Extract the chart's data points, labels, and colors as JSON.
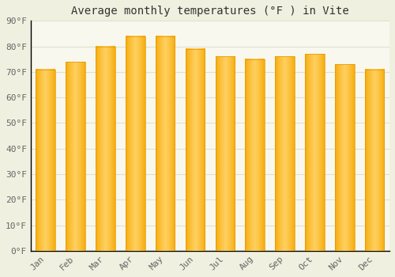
{
  "title": "Average monthly temperatures (°F ) in Vite",
  "months": [
    "Jan",
    "Feb",
    "Mar",
    "Apr",
    "May",
    "Jun",
    "Jul",
    "Aug",
    "Sep",
    "Oct",
    "Nov",
    "Dec"
  ],
  "values": [
    71,
    74,
    80,
    84,
    84,
    79,
    76,
    75,
    76,
    77,
    73,
    71
  ],
  "bar_color_light": "#FFD060",
  "bar_color_dark": "#F5A800",
  "bar_color_edge": "#E69500",
  "background_color": "#f0f0e0",
  "plot_bg_color": "#f8f8ee",
  "grid_color": "#e0e0d0",
  "spine_color": "#000000",
  "tick_color": "#666666",
  "title_color": "#333333",
  "ylim": [
    0,
    90
  ],
  "yticks": [
    0,
    10,
    20,
    30,
    40,
    50,
    60,
    70,
    80,
    90
  ],
  "ytick_labels": [
    "0°F",
    "10°F",
    "20°F",
    "30°F",
    "40°F",
    "50°F",
    "60°F",
    "70°F",
    "80°F",
    "90°F"
  ],
  "title_fontsize": 10,
  "tick_fontsize": 8,
  "bar_width": 0.65
}
